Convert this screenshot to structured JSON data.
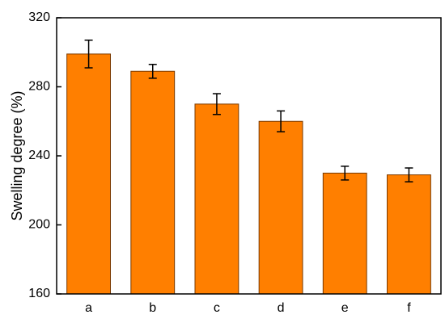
{
  "chart_data": {
    "type": "bar",
    "y_label": "Swelling degree (%)",
    "categories": [
      "a",
      "b",
      "c",
      "d",
      "e",
      "f"
    ],
    "values": [
      299,
      289,
      270,
      260,
      230,
      229
    ],
    "errors": [
      8,
      4,
      6,
      6,
      4,
      4
    ],
    "color": "#ff7f00",
    "ylim": [
      160,
      320
    ],
    "yticks": [
      160,
      200,
      240,
      280,
      320
    ]
  }
}
